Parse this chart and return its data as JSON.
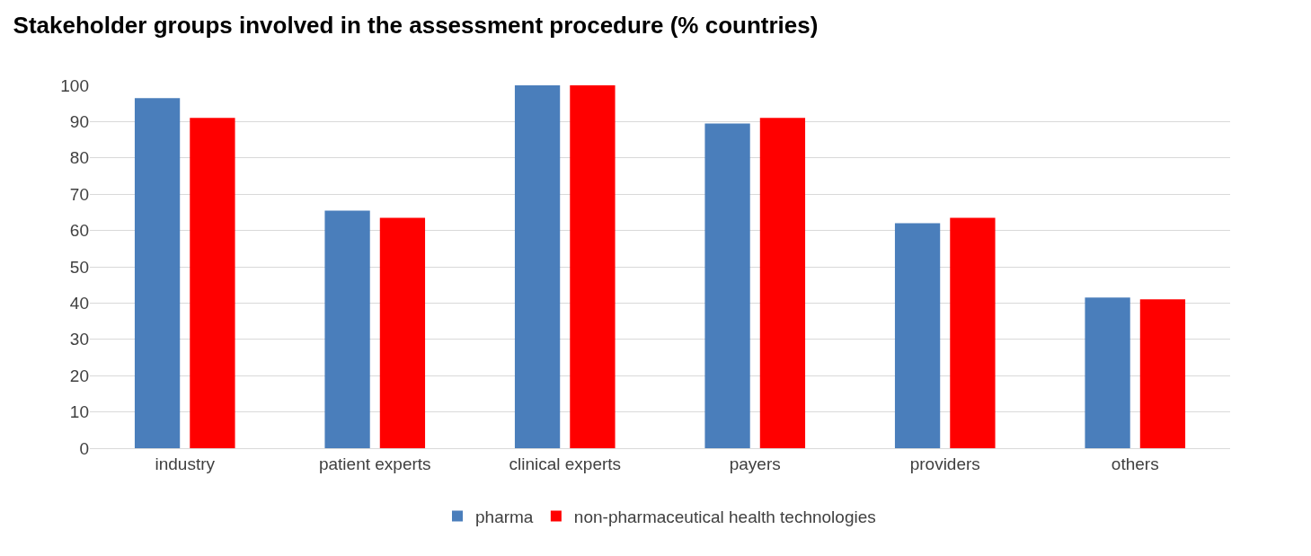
{
  "chart_data": {
    "type": "bar",
    "title": "Stakeholder groups involved in the assessment procedure (% countries)",
    "categories": [
      "industry",
      "patient experts",
      "clinical experts",
      "payers",
      "providers",
      "others"
    ],
    "series": [
      {
        "name": "pharma",
        "color": "#4a7ebb",
        "values": [
          96.5,
          65.5,
          100,
          89.5,
          62,
          41.5
        ]
      },
      {
        "name": "non-pharmaceutical health technologies",
        "color": "#ff0000",
        "values": [
          91,
          63.5,
          100,
          91,
          63.5,
          41
        ]
      }
    ],
    "ylim": [
      0,
      100
    ],
    "yticks": [
      0,
      10,
      20,
      30,
      40,
      50,
      60,
      70,
      80,
      90,
      100
    ],
    "grid": "y",
    "legend": "bottom"
  }
}
